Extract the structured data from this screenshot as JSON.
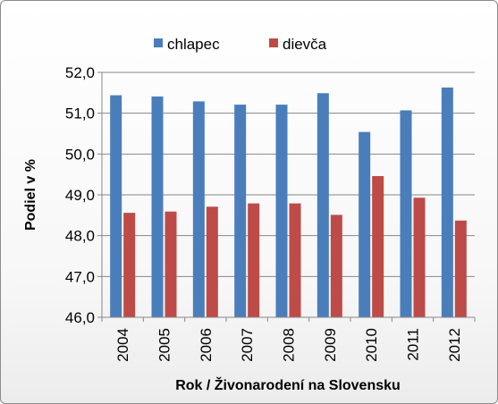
{
  "chart_data": {
    "type": "bar",
    "title": "",
    "xlabel": "Rok / Živonarodení na Slovensku",
    "ylabel": "Podiel v %",
    "categories": [
      "2004",
      "2005",
      "2006",
      "2007",
      "2008",
      "2009",
      "2010",
      "2011",
      "2012"
    ],
    "series": [
      {
        "name": "chlapec",
        "color": "#4a7ebb",
        "values": [
          51.44,
          51.41,
          51.29,
          51.21,
          51.21,
          51.49,
          50.54,
          51.07,
          51.63
        ]
      },
      {
        "name": "dievča",
        "color": "#be4b48",
        "values": [
          48.56,
          48.59,
          48.71,
          48.79,
          48.79,
          48.51,
          49.46,
          48.93,
          48.37
        ]
      }
    ],
    "ylim": [
      46.0,
      52.0
    ],
    "yticks": [
      "46,0",
      "47,0",
      "48,0",
      "49,0",
      "50,0",
      "51,0",
      "52,0"
    ],
    "grid": true,
    "legend_position": "top"
  }
}
